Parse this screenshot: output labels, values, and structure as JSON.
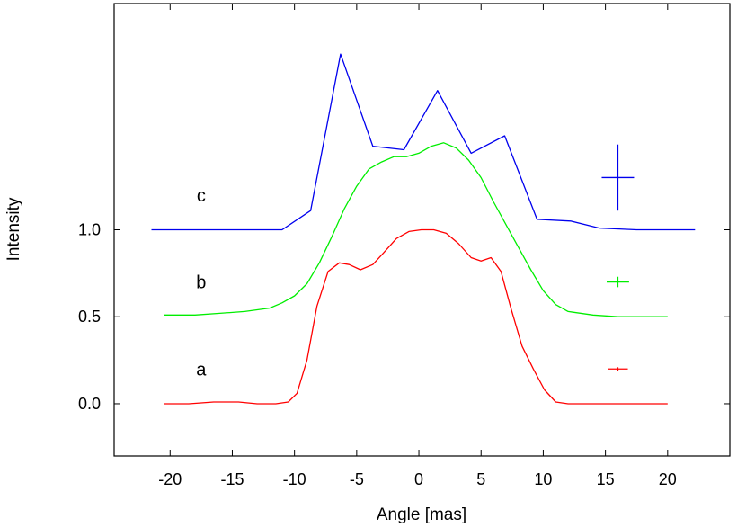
{
  "chart_data": {
    "type": "line",
    "title": "",
    "xlabel": "Angle [mas]",
    "ylabel": "Intensity",
    "xlim": [
      -24.5,
      25
    ],
    "ylim": [
      -0.3,
      2.3
    ],
    "x_ticks": [
      -20,
      -15,
      -10,
      -5,
      0,
      5,
      10,
      15,
      20
    ],
    "x_tick_labels": [
      "-20",
      "-15",
      "-10",
      "-5",
      "0",
      "5",
      "10",
      "15",
      "20"
    ],
    "y_ticks": [
      0.0,
      0.5,
      1.0
    ],
    "y_tick_labels": [
      "0.0",
      "0.5",
      "1.0"
    ],
    "grid": false,
    "series": [
      {
        "label": "a",
        "color": "#ff0000",
        "label_at": [
          -17.5,
          0.2
        ],
        "x": [
          -20.5,
          -18.5,
          -16.5,
          -15.5,
          -14.5,
          -13,
          -11.5,
          -10.5,
          -9.8,
          -9.0,
          -8.2,
          -7.3,
          -6.4,
          -5.6,
          -4.7,
          -3.7,
          -2.8,
          -1.8,
          -0.8,
          0.2,
          1.2,
          2.2,
          3.2,
          4.2,
          5.0,
          5.8,
          6.6,
          7.4,
          8.3,
          9.2,
          10.1,
          11.0,
          12.0,
          14.0,
          16.0,
          18.0,
          20.0
        ],
        "y": [
          0.0,
          0.0,
          0.01,
          0.01,
          0.01,
          0.0,
          0.0,
          0.01,
          0.06,
          0.25,
          0.56,
          0.76,
          0.81,
          0.8,
          0.77,
          0.8,
          0.87,
          0.95,
          0.99,
          1.0,
          1.0,
          0.98,
          0.92,
          0.84,
          0.82,
          0.84,
          0.76,
          0.55,
          0.33,
          0.2,
          0.08,
          0.01,
          0.0,
          0.0,
          0.0,
          0.0,
          0.0
        ],
        "error_bar": {
          "x": 16,
          "y": 0.2,
          "dx": 0.8,
          "dy": 0.01
        }
      },
      {
        "label": "b",
        "color": "#00ee00",
        "label_at": [
          -17.5,
          0.7
        ],
        "x": [
          -20.5,
          -18,
          -16,
          -14,
          -12,
          -11,
          -10,
          -9,
          -8,
          -7,
          -6,
          -5,
          -4,
          -3,
          -2,
          -1,
          0,
          1,
          2,
          3,
          4,
          5,
          6,
          7,
          8,
          9,
          10,
          11,
          12,
          14,
          16,
          18,
          20
        ],
        "y": [
          0.51,
          0.51,
          0.52,
          0.53,
          0.55,
          0.58,
          0.62,
          0.69,
          0.81,
          0.96,
          1.12,
          1.25,
          1.35,
          1.39,
          1.42,
          1.42,
          1.44,
          1.48,
          1.5,
          1.47,
          1.4,
          1.3,
          1.16,
          1.03,
          0.9,
          0.77,
          0.65,
          0.57,
          0.53,
          0.51,
          0.5,
          0.5,
          0.5
        ],
        "error_bar": {
          "x": 16,
          "y": 0.7,
          "dx": 0.9,
          "dy": 0.03
        }
      },
      {
        "label": "c",
        "color": "#0000ee",
        "label_at": [
          -17.5,
          1.2
        ],
        "x": [
          -21.5,
          -18,
          -15,
          -13,
          -11,
          -8.7,
          -6.3,
          -3.7,
          -1.2,
          1.5,
          4.2,
          6.9,
          9.5,
          12.2,
          14.5,
          17.5,
          22.2
        ],
        "y": [
          1.0,
          1.0,
          1.0,
          1.0,
          1.0,
          1.11,
          2.01,
          1.48,
          1.46,
          1.8,
          1.44,
          1.54,
          1.06,
          1.05,
          1.01,
          1.0,
          1.0
        ],
        "error_bar": {
          "x": 16,
          "y": 1.3,
          "dx": 1.3,
          "dy": 0.19
        }
      }
    ]
  }
}
